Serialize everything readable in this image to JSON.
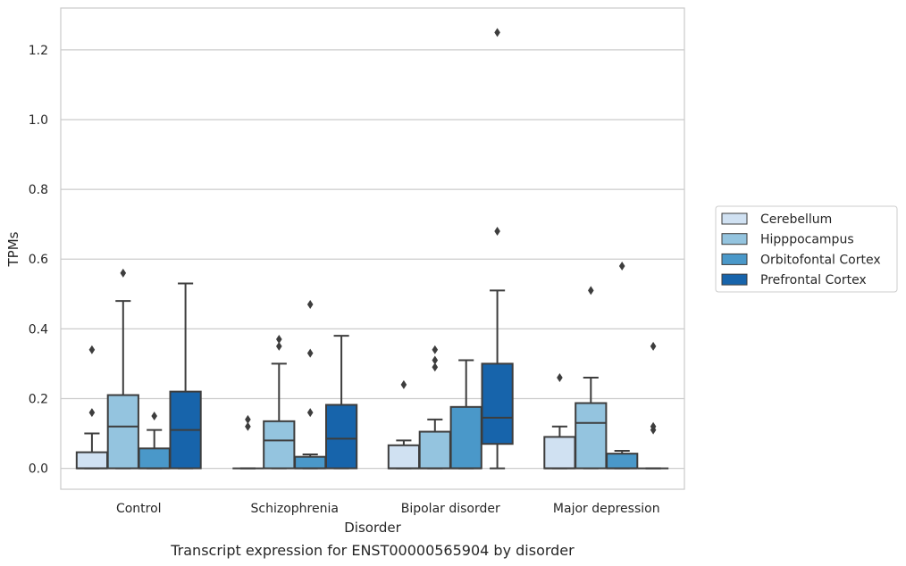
{
  "chart_data": {
    "type": "box",
    "title": "",
    "caption": "Transcript expression for ENST00000565904 by disorder",
    "xlabel": "Disorder",
    "ylabel": "TPMs",
    "ylim": [
      -0.06,
      1.32
    ],
    "yticks": [
      "0.0",
      "0.2",
      "0.4",
      "0.6",
      "0.8",
      "1.0",
      "1.2"
    ],
    "grid": "horizontal",
    "legend_position": "right",
    "categories": [
      "Control",
      "Schizophrenia",
      "Bipolar disorder",
      "Major depression"
    ],
    "series": [
      {
        "name": "Cerebellum",
        "color": "#d0e1f2",
        "boxes": [
          {
            "q1": 0.0,
            "median": 0.0,
            "q3": 0.046,
            "whisker_low": 0.0,
            "whisker_high": 0.1,
            "outliers": [
              0.16,
              0.34
            ]
          },
          {
            "q1": 0.0,
            "median": 0.0,
            "q3": 0.0,
            "whisker_low": 0.0,
            "whisker_high": 0.0,
            "outliers": [
              0.12,
              0.14
            ]
          },
          {
            "q1": 0.0,
            "median": 0.0,
            "q3": 0.066,
            "whisker_low": 0.0,
            "whisker_high": 0.08,
            "outliers": [
              0.24
            ]
          },
          {
            "q1": 0.0,
            "median": 0.0,
            "q3": 0.09,
            "whisker_low": 0.0,
            "whisker_high": 0.12,
            "outliers": [
              0.26
            ]
          }
        ]
      },
      {
        "name": "Hipppocampus",
        "color": "#94c4df",
        "boxes": [
          {
            "q1": 0.0,
            "median": 0.12,
            "q3": 0.21,
            "whisker_low": 0.0,
            "whisker_high": 0.48,
            "outliers": [
              0.56
            ]
          },
          {
            "q1": 0.0,
            "median": 0.08,
            "q3": 0.135,
            "whisker_low": 0.0,
            "whisker_high": 0.3,
            "outliers": [
              0.35,
              0.37
            ]
          },
          {
            "q1": 0.0,
            "median": 0.0,
            "q3": 0.105,
            "whisker_low": 0.0,
            "whisker_high": 0.14,
            "outliers": [
              0.29,
              0.31,
              0.34
            ]
          },
          {
            "q1": 0.0,
            "median": 0.13,
            "q3": 0.187,
            "whisker_low": 0.0,
            "whisker_high": 0.26,
            "outliers": [
              0.51
            ]
          }
        ]
      },
      {
        "name": "Orbitofontal Cortex",
        "color": "#4a98c9",
        "boxes": [
          {
            "q1": 0.0,
            "median": 0.0,
            "q3": 0.057,
            "whisker_low": 0.0,
            "whisker_high": 0.11,
            "outliers": [
              0.15
            ]
          },
          {
            "q1": 0.0,
            "median": 0.0,
            "q3": 0.033,
            "whisker_low": 0.0,
            "whisker_high": 0.04,
            "outliers": [
              0.16,
              0.33,
              0.47
            ]
          },
          {
            "q1": 0.0,
            "median": 0.0,
            "q3": 0.176,
            "whisker_low": 0.0,
            "whisker_high": 0.31,
            "outliers": []
          },
          {
            "q1": 0.0,
            "median": 0.0,
            "q3": 0.042,
            "whisker_low": 0.0,
            "whisker_high": 0.05,
            "outliers": [
              0.58
            ]
          }
        ]
      },
      {
        "name": "Prefrontal Cortex",
        "color": "#1764ab",
        "boxes": [
          {
            "q1": 0.0,
            "median": 0.11,
            "q3": 0.22,
            "whisker_low": 0.0,
            "whisker_high": 0.53,
            "outliers": []
          },
          {
            "q1": 0.0,
            "median": 0.085,
            "q3": 0.182,
            "whisker_low": 0.0,
            "whisker_high": 0.38,
            "outliers": []
          },
          {
            "q1": 0.07,
            "median": 0.145,
            "q3": 0.3,
            "whisker_low": 0.0,
            "whisker_high": 0.51,
            "outliers": [
              0.68,
              1.25
            ]
          },
          {
            "q1": 0.0,
            "median": 0.0,
            "q3": 0.0,
            "whisker_low": 0.0,
            "whisker_high": 0.0,
            "outliers": [
              0.11,
              0.12,
              0.35
            ]
          }
        ]
      }
    ]
  }
}
